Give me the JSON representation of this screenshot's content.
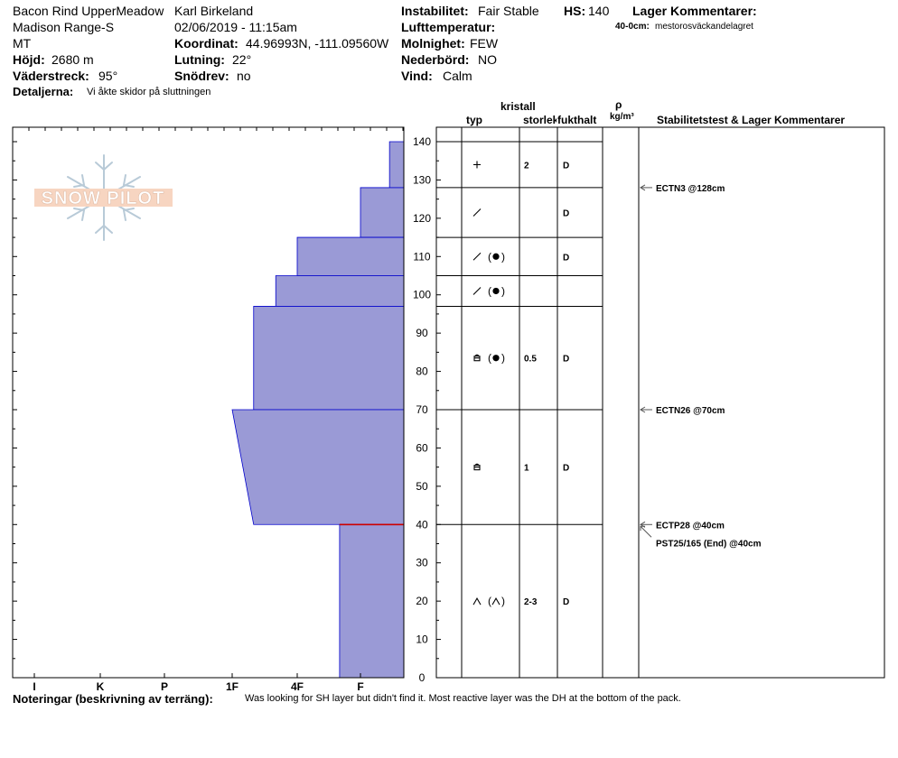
{
  "header": {
    "location": "Bacon Rind UpperMeadow",
    "range": "Madison Range-S",
    "state": "MT",
    "elevation_label": "Höjd:",
    "elevation_value": "2680 m",
    "aspect_label": "Väderstreck:",
    "aspect_value": "95°",
    "details_label": "Detaljerna:",
    "details_value": "Vi åkte skidor på sluttningen",
    "observer": "Karl Birkeland",
    "datetime": "02/06/2019 - 11:15am",
    "coord_label": "Koordinat:",
    "coord_value": "44.96993N, -111.09560W",
    "slope_label": "Lutning:",
    "slope_value": "22°",
    "snowdrift_label": "Snödrev:",
    "snowdrift_value": "no",
    "instability_label": "Instabilitet:",
    "instability_value": "Fair Stable",
    "airtemp_label": "Lufttemperatur:",
    "cloud_label": "Molnighet:",
    "cloud_value": "FEW",
    "precip_label": "Nederbörd:",
    "precip_value": "NO",
    "wind_label": "Vind:",
    "wind_value": "Calm",
    "hs_label": "HS:",
    "hs_value": "140",
    "layer_comments_label": "Lager Kommentarer:",
    "layer_comment_depth": "40-0cm:",
    "layer_comment_text": "mestorosväckandelagret"
  },
  "columns": {
    "crystal": "kristall",
    "type": "typ",
    "size": "storlek",
    "moisture": "fukthalt",
    "rho": "ρ",
    "density_unit": "kg/m³",
    "stability": "Stabilitetstest & Lager Kommentarer"
  },
  "logo": {
    "text": "SNOW PILOT"
  },
  "notes": {
    "label": "Noteringar (beskrivning av terräng):",
    "text": "Was looking for SH layer but didn't find it.  Most reactive layer was the DH at the bottom of the pack."
  },
  "chart_data": {
    "type": "snow-profile",
    "hardness_scale": [
      "I",
      "K",
      "P",
      "1F",
      "4F",
      "F"
    ],
    "height_axis": {
      "min": 0,
      "max": 140,
      "step": 10
    },
    "colors": {
      "fill": "#9a9ad6",
      "outline": "#0000cc",
      "critical": "#cc0000"
    },
    "hardness_profile": [
      {
        "from": 140,
        "to": 128,
        "hardness": 5.67
      },
      {
        "from": 128,
        "to": 115,
        "hardness": 5.0
      },
      {
        "from": 115,
        "to": 105,
        "hardness": 4.0
      },
      {
        "from": 105,
        "to": 97,
        "hardness": 3.67
      },
      {
        "from": 97,
        "to": 70,
        "hardness": 3.33
      },
      {
        "from": 70,
        "to": 40,
        "hardness_top": 3.0,
        "hardness_bottom": 3.33
      },
      {
        "from": 40,
        "to": 0,
        "hardness": 4.67
      }
    ],
    "critical_layer_height": 40,
    "layer_boundaries": [
      140,
      128,
      115,
      105,
      97,
      70,
      40,
      0
    ],
    "layers": [
      {
        "center": 134,
        "type_icon": "plus",
        "type2": "",
        "size": "2",
        "moisture": "D"
      },
      {
        "center": 121.5,
        "type_icon": "slash",
        "type2": "",
        "size": "",
        "moisture": "D"
      },
      {
        "center": 110,
        "type_icon": "slash",
        "type2": "dot",
        "size": "",
        "moisture": "D"
      },
      {
        "center": 101,
        "type_icon": "slash",
        "type2": "dot",
        "size": "",
        "moisture": ""
      },
      {
        "center": 83.5,
        "type_icon": "square",
        "type2": "dot",
        "size": "0.5",
        "moisture": "D"
      },
      {
        "center": 55,
        "type_icon": "square",
        "type2": "",
        "size": "1",
        "moisture": "D"
      },
      {
        "center": 20,
        "type_icon": "caret",
        "type2": "caret",
        "size": "2-3",
        "moisture": "D"
      }
    ],
    "tests": [
      {
        "height": 128,
        "label": "ECTN3 @128cm"
      },
      {
        "height": 70,
        "label": "ECTN26 @70cm"
      },
      {
        "height": 40,
        "label": "ECTP28 @40cm"
      },
      {
        "height": 40,
        "label": "PST25/165 (End) @40cm",
        "offset": true
      }
    ]
  }
}
